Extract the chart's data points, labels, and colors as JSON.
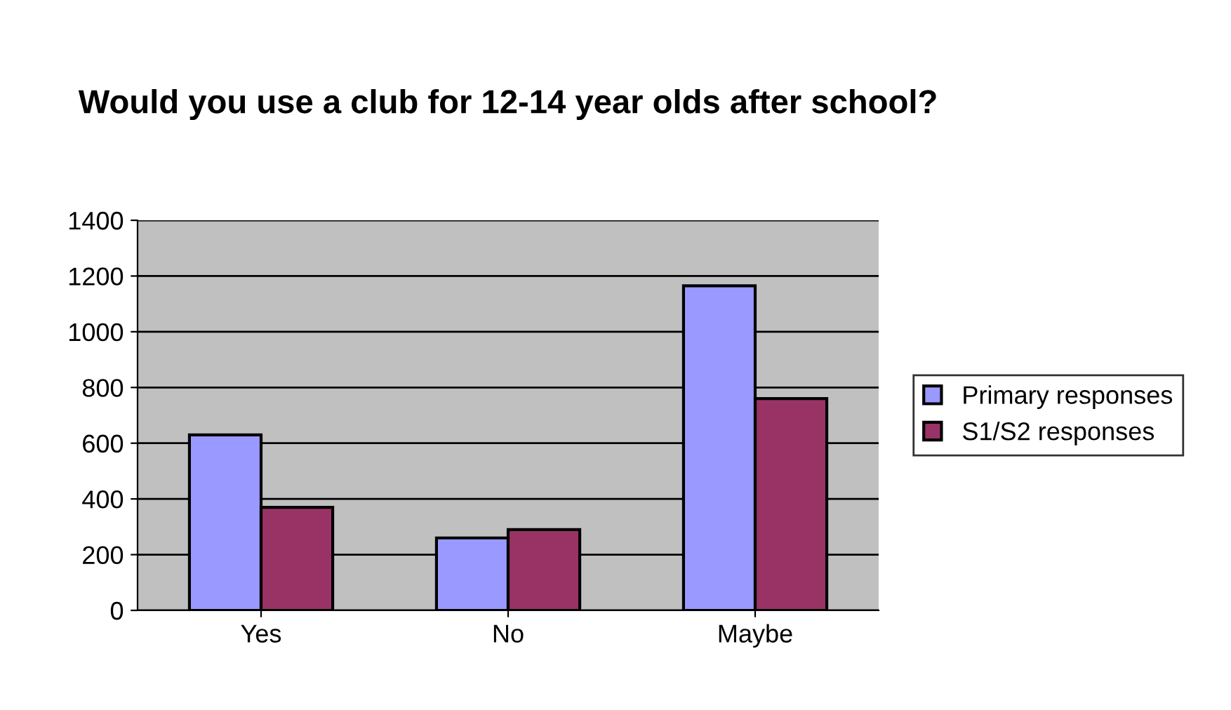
{
  "chart_data": {
    "type": "bar",
    "title": "Would you use a club for 12-14 year olds after school?",
    "categories": [
      "Yes",
      "No",
      "Maybe"
    ],
    "series": [
      {
        "name": "Primary responses",
        "color": "#9999ff",
        "values": [
          630,
          260,
          1165
        ]
      },
      {
        "name": "S1/S2 responses",
        "color": "#993366",
        "values": [
          370,
          290,
          760
        ]
      }
    ],
    "ylim": [
      0,
      1400
    ],
    "yticks": [
      0,
      200,
      400,
      600,
      800,
      1000,
      1200,
      1400
    ],
    "grid": "y",
    "legend": "right"
  }
}
